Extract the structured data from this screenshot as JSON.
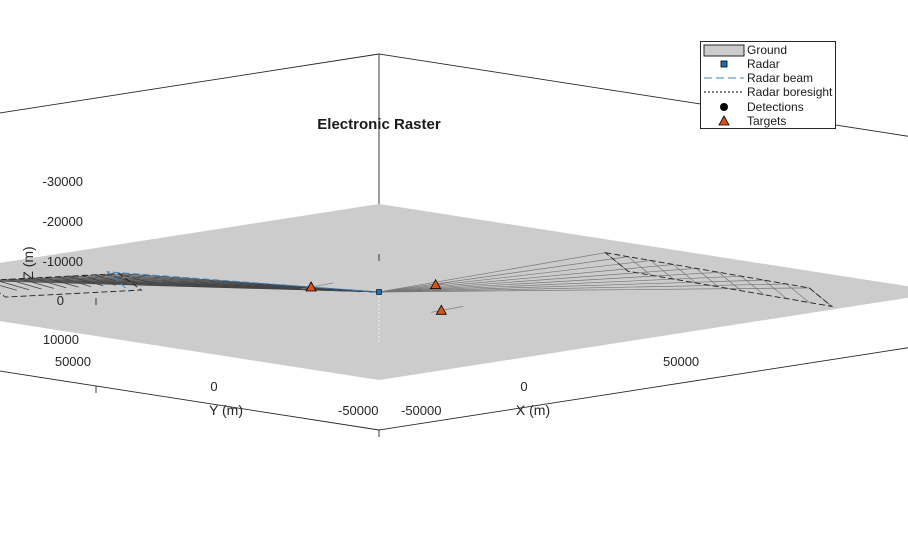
{
  "chart_data": {
    "type": "scatter3d",
    "title": "Electronic Raster",
    "xlabel": "X (m)",
    "ylabel": "Y (m)",
    "zlabel": "Z (m)",
    "x_ticks": [
      "-50000",
      "0",
      "50000"
    ],
    "y_ticks": [
      "50000",
      "0",
      "-50000"
    ],
    "z_ticks": [
      "-30000",
      "-20000",
      "-10000",
      "0",
      "10000"
    ],
    "xlim": [
      -50000,
      50000
    ],
    "ylim": [
      -50000,
      50000
    ],
    "zlim": [
      -30000,
      10000
    ],
    "z_reversed": true,
    "legend": {
      "position": "top-right",
      "entries": [
        "Ground",
        "Radar",
        "Radar beam",
        "Radar boresight",
        "Detections",
        "Targets"
      ]
    },
    "radar": {
      "x": 0,
      "y": 0,
      "z": 0
    },
    "targets": [
      {
        "x": 23000,
        "y": 12000,
        "z": -2500
      },
      {
        "x": -6000,
        "y": 6000,
        "z": -1000
      },
      {
        "x": 2000,
        "y": -8000,
        "z": -400
      }
    ],
    "colors": {
      "ground": "#cccccc",
      "radar": "#1f6fb5",
      "beam": "#3a87c8",
      "target": "#d95319",
      "detection": "#000000"
    }
  }
}
